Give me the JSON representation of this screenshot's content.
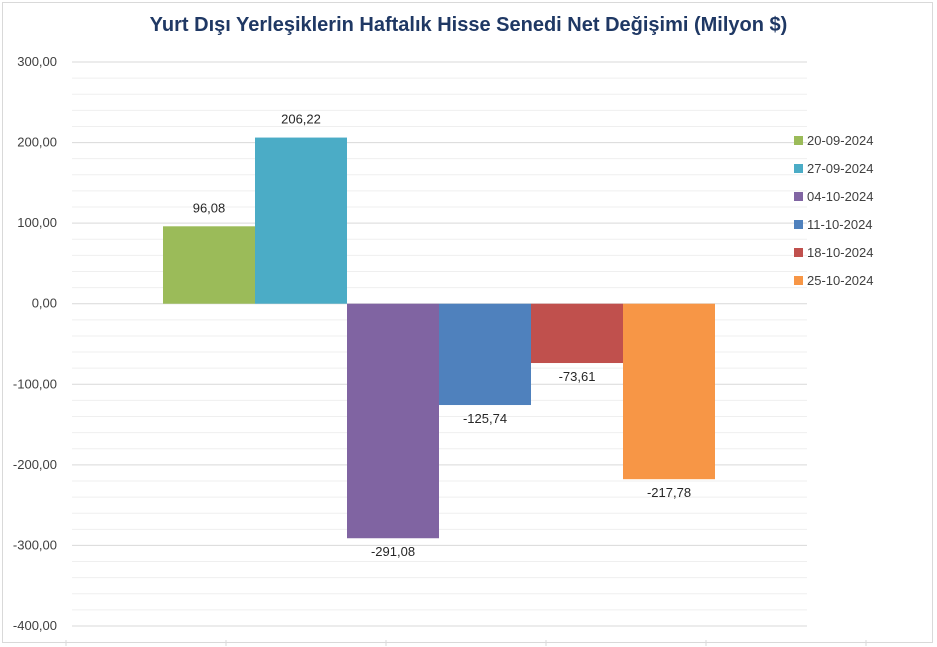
{
  "chart_data": {
    "type": "bar",
    "title": "Yurt Dışı Yerleşiklerin Haftalık Hisse Senedi Net Değişimi (Milyon $)",
    "xlabel": "",
    "ylabel": "",
    "ylim": [
      -400,
      300
    ],
    "yticks": [
      300,
      200,
      100,
      0,
      -100,
      -200,
      -300,
      -400
    ],
    "ytick_labels": [
      "300,00",
      "200,00",
      "100,00",
      "0,00",
      "-100,00",
      "-200,00",
      "-300,00",
      "-400,00"
    ],
    "grid": true,
    "legend_position": "right",
    "series": [
      {
        "name": "20-09-2024",
        "value": 96.08,
        "label": "96,08",
        "color": "#9bbb59"
      },
      {
        "name": "27-09-2024",
        "value": 206.22,
        "label": "206,22",
        "color": "#4bacc6"
      },
      {
        "name": "04-10-2024",
        "value": -291.08,
        "label": "-291,08",
        "color": "#8064a2"
      },
      {
        "name": "11-10-2024",
        "value": -125.74,
        "label": "-125,74",
        "color": "#4f81bd"
      },
      {
        "name": "18-10-2024",
        "value": -73.61,
        "label": "-73,61",
        "color": "#c0504d"
      },
      {
        "name": "25-10-2024",
        "value": -217.78,
        "label": "-217,78",
        "color": "#f79646"
      }
    ]
  },
  "colors": {
    "title": "#1f3864",
    "gridline": "#d9d9d9",
    "minor_gridline": "#efefef",
    "axis_text": "#404040"
  }
}
